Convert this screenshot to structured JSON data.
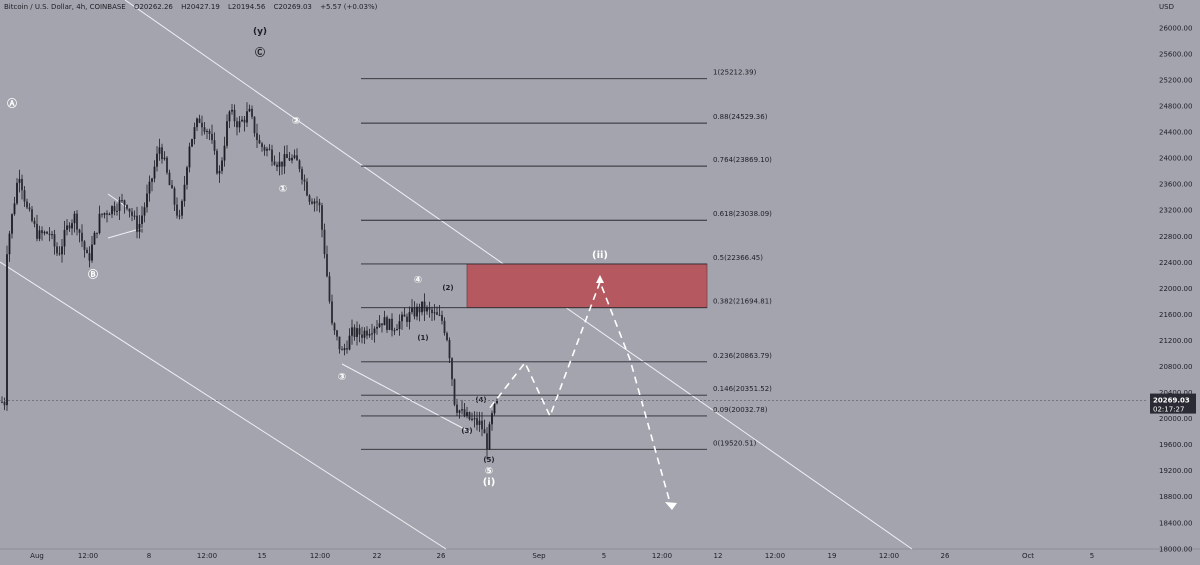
{
  "header": {
    "symbol": "Bitcoin / U.S. Dollar, 4h, COINBASE",
    "open": "O20262.26",
    "high": "H20427.19",
    "low": "L20194.56",
    "close": "C20269.03",
    "change": "+5.57 (+0.03%)"
  },
  "chart_data": {
    "type": "candlestick",
    "currency_label": "USD",
    "y_ticks": [
      26000,
      25600,
      25200,
      24800,
      24400,
      24000,
      23600,
      23200,
      22800,
      22400,
      22000,
      21600,
      21200,
      20800,
      20400,
      20000,
      19600,
      19200,
      18800,
      18400,
      18000
    ],
    "ylim": [
      17990,
      26420
    ],
    "x_ticks": [
      "Aug",
      "12:00",
      "8",
      "12:00",
      "15",
      "12:00",
      "22",
      "26",
      "Sep",
      "5",
      "12:00",
      "12",
      "12:00",
      "19",
      "12:00",
      "26",
      "Oct",
      "5"
    ],
    "last_price": {
      "value": "20269.03",
      "countdown": "02:17:27"
    },
    "fib_levels": [
      {
        "label": "1(25212.39)",
        "value": 25212.39
      },
      {
        "label": "0.88(24529.36)",
        "value": 24529.36
      },
      {
        "label": "0.764(23869.10)",
        "value": 23869.1
      },
      {
        "label": "0.618(23038.09)",
        "value": 23038.09
      },
      {
        "label": "0.5(22366.45)",
        "value": 22366.45
      },
      {
        "label": "0.382(21694.81)",
        "value": 21694.81
      },
      {
        "label": "0.236(20863.79)",
        "value": 20863.79
      },
      {
        "label": "0.146(20351.52)",
        "value": 20351.52
      },
      {
        "label": "0.09(20032.78)",
        "value": 20032.78
      },
      {
        "label": "0(19520.51)",
        "value": 19520.51
      }
    ],
    "target_zone": {
      "from": 21694.81,
      "to": 22366.45,
      "color": "#b5585f"
    },
    "wave_labels": [
      "(y)",
      "Ⓒ",
      "Ⓐ",
      "Ⓑ",
      "②",
      "①",
      "③",
      "④",
      "(2)",
      "(1)",
      "(4)",
      "(3)",
      "(5)",
      "⑤",
      "(i)",
      "(ii)"
    ],
    "path": [
      [
        7,
        22600
      ],
      [
        19,
        23800
      ],
      [
        27,
        23200
      ],
      [
        38,
        22800
      ],
      [
        49,
        22850
      ],
      [
        58,
        22500
      ],
      [
        69,
        23000
      ],
      [
        75,
        23100
      ],
      [
        88,
        22400
      ],
      [
        100,
        23100
      ],
      [
        109,
        23200
      ],
      [
        119,
        23300
      ],
      [
        127,
        23300
      ],
      [
        138,
        22900
      ],
      [
        149,
        23500
      ],
      [
        160,
        24200
      ],
      [
        169,
        23600
      ],
      [
        180,
        23000
      ],
      [
        189,
        24200
      ],
      [
        199,
        24600
      ],
      [
        209,
        24400
      ],
      [
        219,
        23700
      ],
      [
        229,
        24700
      ],
      [
        239,
        24500
      ],
      [
        249,
        24700
      ],
      [
        259,
        24200
      ],
      [
        269,
        24100
      ],
      [
        279,
        23900
      ],
      [
        289,
        24000
      ],
      [
        299,
        23900
      ],
      [
        309,
        23400
      ],
      [
        319,
        23300
      ],
      [
        325,
        22500
      ],
      [
        332,
        21400
      ],
      [
        342,
        21000
      ],
      [
        352,
        21300
      ],
      [
        362,
        21300
      ],
      [
        372,
        21400
      ],
      [
        382,
        21500
      ],
      [
        392,
        21400
      ],
      [
        402,
        21500
      ],
      [
        412,
        21600
      ],
      [
        422,
        21700
      ],
      [
        432,
        21600
      ],
      [
        442,
        21500
      ],
      [
        448,
        21200
      ],
      [
        455,
        20200
      ],
      [
        463,
        20050
      ],
      [
        473,
        19950
      ],
      [
        481,
        19900
      ],
      [
        487,
        19600
      ],
      [
        493,
        20100
      ],
      [
        498,
        20250
      ]
    ],
    "colors": {
      "up": "#1c1c24",
      "down": "#2a2a32",
      "channel": "#f0f0f5",
      "fib_line": "#2a2a32",
      "projection": "#ffffff"
    }
  }
}
